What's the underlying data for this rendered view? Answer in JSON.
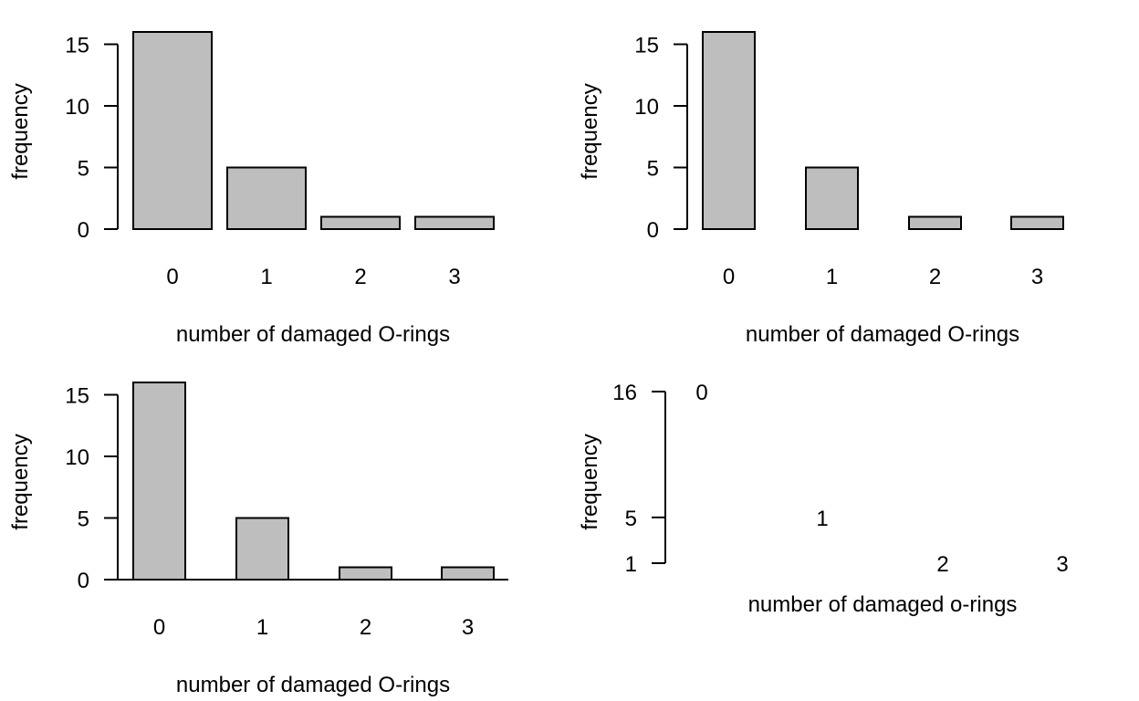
{
  "colors": {
    "bar_fill": "#bebebe",
    "stroke": "#000000",
    "background": "#ffffff"
  },
  "chart_data": [
    {
      "type": "bar",
      "categories": [
        "0",
        "1",
        "2",
        "3"
      ],
      "values": [
        16,
        5,
        1,
        1
      ],
      "xlabel": "number of damaged O-rings",
      "ylabel": "frequency",
      "yticks": [
        "0",
        "5",
        "10",
        "15"
      ],
      "ylim": [
        0,
        16
      ],
      "grid": false,
      "bar_width": "wide",
      "x_axis_line": false
    },
    {
      "type": "bar",
      "categories": [
        "0",
        "1",
        "2",
        "3"
      ],
      "values": [
        16,
        5,
        1,
        1
      ],
      "xlabel": "number of damaged O-rings",
      "ylabel": "frequency",
      "yticks": [
        "0",
        "5",
        "10",
        "15"
      ],
      "ylim": [
        0,
        16
      ],
      "grid": false,
      "bar_width": "narrow",
      "x_axis_line": false
    },
    {
      "type": "bar",
      "categories": [
        "0",
        "1",
        "2",
        "3"
      ],
      "values": [
        16,
        5,
        1,
        1
      ],
      "xlabel": "number of damaged O-rings",
      "ylabel": "frequency",
      "yticks": [
        "0",
        "5",
        "10",
        "15"
      ],
      "ylim": [
        0,
        16
      ],
      "grid": false,
      "bar_width": "narrow",
      "x_axis_line": true
    },
    {
      "type": "scatter",
      "x": [
        0,
        1,
        2,
        3
      ],
      "y": [
        16,
        5,
        1,
        1
      ],
      "point_labels": [
        "0",
        "1",
        "2",
        "3"
      ],
      "xlabel": "number of damaged o-rings",
      "ylabel": "frequency",
      "yticks": [
        "1",
        "5",
        "16"
      ],
      "ylim": [
        1,
        16
      ],
      "grid": false
    }
  ]
}
